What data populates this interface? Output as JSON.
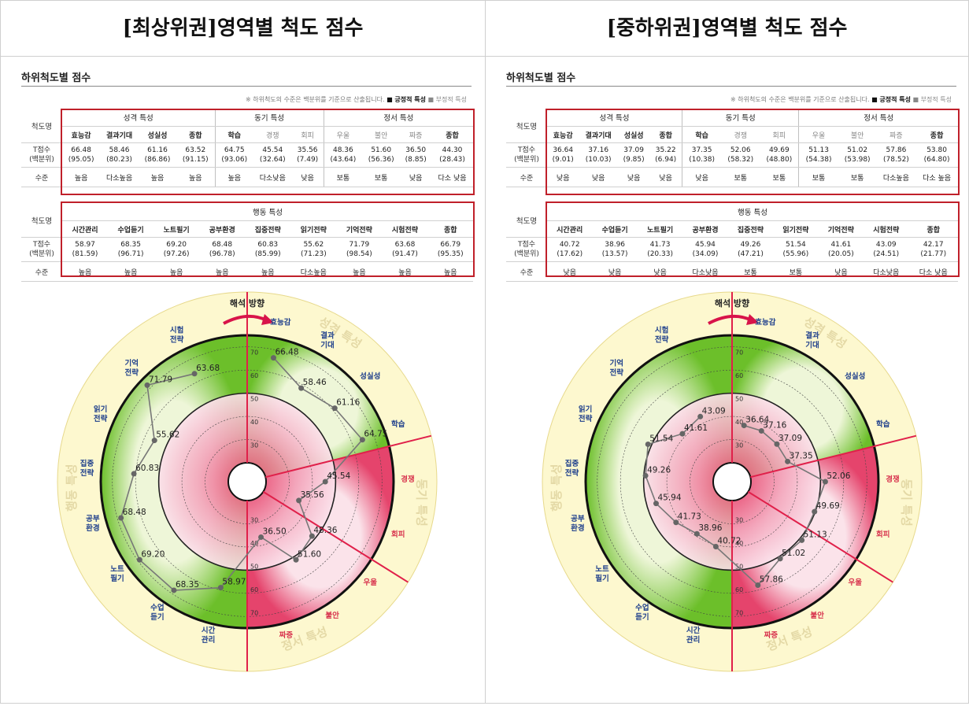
{
  "panels": [
    {
      "title": "[최상위권]영역별 척도 점수",
      "subtitle": "하위척도별 점수",
      "note_prefix": "※ 하위척도의 수준은 백분위를 기준으로 산출됩니다.",
      "note_positive": "■ 긍정적 특성",
      "note_negative": "■ 부정적 특성",
      "row_label_scale": "척도명",
      "row_label_t": "T점수",
      "row_label_pct": "(백분위)",
      "row_label_level": "수준",
      "group1": [
        {
          "name": "성격 특성",
          "cols": [
            {
              "name": "효능감",
              "t": "66.48",
              "p": "(95.05)",
              "level": "높음",
              "neg": false
            },
            {
              "name": "결과기대",
              "t": "58.46",
              "p": "(80.23)",
              "level": "다소높음",
              "neg": false
            },
            {
              "name": "성실성",
              "t": "61.16",
              "p": "(86.86)",
              "level": "높음",
              "neg": false
            },
            {
              "name": "종합",
              "t": "63.52",
              "p": "(91.15)",
              "level": "높음",
              "neg": false
            }
          ]
        },
        {
          "name": "동기 특성",
          "cols": [
            {
              "name": "학습",
              "t": "64.75",
              "p": "(93.06)",
              "level": "높음",
              "neg": false
            },
            {
              "name": "경쟁",
              "t": "45.54",
              "p": "(32.64)",
              "level": "다소낮음",
              "neg": true
            },
            {
              "name": "회피",
              "t": "35.56",
              "p": "(7.49)",
              "level": "낮음",
              "neg": true
            }
          ]
        },
        {
          "name": "정서 특성",
          "cols": [
            {
              "name": "우울",
              "t": "48.36",
              "p": "(43.64)",
              "level": "보통",
              "neg": true
            },
            {
              "name": "불안",
              "t": "51.60",
              "p": "(56.36)",
              "level": "보통",
              "neg": true
            },
            {
              "name": "짜증",
              "t": "36.50",
              "p": "(8.85)",
              "level": "낮음",
              "neg": true
            },
            {
              "name": "종합",
              "t": "44.30",
              "p": "(28.43)",
              "level": "다소 낮음",
              "neg": false
            }
          ]
        }
      ],
      "group2": {
        "name": "행동 특성",
        "cols": [
          {
            "name": "시간관리",
            "t": "58.97",
            "p": "(81.59)",
            "level": "높음"
          },
          {
            "name": "수업듣기",
            "t": "68.35",
            "p": "(96.71)",
            "level": "높음"
          },
          {
            "name": "노트필기",
            "t": "69.20",
            "p": "(97.26)",
            "level": "높음"
          },
          {
            "name": "공부환경",
            "t": "68.48",
            "p": "(96.78)",
            "level": "높음"
          },
          {
            "name": "집중전략",
            "t": "60.83",
            "p": "(85.99)",
            "level": "높음"
          },
          {
            "name": "읽기전략",
            "t": "55.62",
            "p": "(71.23)",
            "level": "다소높음"
          },
          {
            "name": "기억전략",
            "t": "71.79",
            "p": "(98.54)",
            "level": "높음"
          },
          {
            "name": "시험전략",
            "t": "63.68",
            "p": "(91.47)",
            "level": "높음"
          },
          {
            "name": "종합",
            "t": "66.79",
            "p": "(95.35)",
            "level": "높음"
          }
        ]
      },
      "chart": {
        "header": "해석 방향",
        "personality_label": "성격 특성",
        "motivation_label": "동기 특성",
        "emotion_label": "정서 특성",
        "behavior_label": "행동 특성",
        "ticks": [
          "30",
          "40",
          "50",
          "60",
          "70"
        ],
        "points": [
          {
            "label": "효능감",
            "value": 66.48
          },
          {
            "label": "결과\n기대",
            "value": 58.46
          },
          {
            "label": "성실성",
            "value": 61.16
          },
          {
            "label": "학습",
            "value": 64.75
          },
          {
            "label": "경쟁",
            "value": 45.54,
            "neg": true
          },
          {
            "label": "회피",
            "value": 35.56,
            "neg": true
          },
          {
            "label": "우울",
            "value": 48.36,
            "neg": true
          },
          {
            "label": "불안",
            "value": 51.6,
            "neg": true
          },
          {
            "label": "짜증",
            "value": 36.5,
            "neg": true
          },
          {
            "label": "시간\n관리",
            "value": 58.97
          },
          {
            "label": "수업\n듣기",
            "value": 68.35
          },
          {
            "label": "노트\n필기",
            "value": 69.2
          },
          {
            "label": "공부\n환경",
            "value": 68.48
          },
          {
            "label": "집중\n전략",
            "value": 60.83
          },
          {
            "label": "읽기\n전략",
            "value": 55.62
          },
          {
            "label": "기억\n전략",
            "value": 71.79
          },
          {
            "label": "시험\n전략",
            "value": 63.68
          }
        ]
      }
    },
    {
      "title": "[중하위권]영역별 척도 점수",
      "subtitle": "하위척도별 점수",
      "note_prefix": "※ 하위척도의 수준은 백분위를 기준으로 산출됩니다.",
      "note_positive": "■ 긍정적 특성",
      "note_negative": "■ 부정적 특성",
      "row_label_scale": "척도명",
      "row_label_t": "T점수",
      "row_label_pct": "(백분위)",
      "row_label_level": "수준",
      "group1": [
        {
          "name": "성격 특성",
          "cols": [
            {
              "name": "효능감",
              "t": "36.64",
              "p": "(9.01)",
              "level": "낮음",
              "neg": false
            },
            {
              "name": "결과기대",
              "t": "37.16",
              "p": "(10.03)",
              "level": "낮음",
              "neg": false
            },
            {
              "name": "성실성",
              "t": "37.09",
              "p": "(9.85)",
              "level": "낮음",
              "neg": false
            },
            {
              "name": "종합",
              "t": "35.22",
              "p": "(6.94)",
              "level": "낮음",
              "neg": false
            }
          ]
        },
        {
          "name": "동기 특성",
          "cols": [
            {
              "name": "학습",
              "t": "37.35",
              "p": "(10.38)",
              "level": "낮음",
              "neg": false
            },
            {
              "name": "경쟁",
              "t": "52.06",
              "p": "(58.32)",
              "level": "보통",
              "neg": true
            },
            {
              "name": "회피",
              "t": "49.69",
              "p": "(48.80)",
              "level": "보통",
              "neg": true
            }
          ]
        },
        {
          "name": "정서 특성",
          "cols": [
            {
              "name": "우울",
              "t": "51.13",
              "p": "(54.38)",
              "level": "보통",
              "neg": true
            },
            {
              "name": "불안",
              "t": "51.02",
              "p": "(53.98)",
              "level": "보통",
              "neg": true
            },
            {
              "name": "짜증",
              "t": "57.86",
              "p": "(78.52)",
              "level": "다소높음",
              "neg": true
            },
            {
              "name": "종합",
              "t": "53.80",
              "p": "(64.80)",
              "level": "다소 높음",
              "neg": false
            }
          ]
        }
      ],
      "group2": {
        "name": "행동 특성",
        "cols": [
          {
            "name": "시간관리",
            "t": "40.72",
            "p": "(17.62)",
            "level": "낮음"
          },
          {
            "name": "수업듣기",
            "t": "38.96",
            "p": "(13.57)",
            "level": "낮음"
          },
          {
            "name": "노트필기",
            "t": "41.73",
            "p": "(20.33)",
            "level": "낮음"
          },
          {
            "name": "공부환경",
            "t": "45.94",
            "p": "(34.09)",
            "level": "다소낮음"
          },
          {
            "name": "집중전략",
            "t": "49.26",
            "p": "(47.21)",
            "level": "보통"
          },
          {
            "name": "읽기전략",
            "t": "51.54",
            "p": "(55.96)",
            "level": "보통"
          },
          {
            "name": "기억전략",
            "t": "41.61",
            "p": "(20.05)",
            "level": "낮음"
          },
          {
            "name": "시험전략",
            "t": "43.09",
            "p": "(24.51)",
            "level": "다소낮음"
          },
          {
            "name": "종합",
            "t": "42.17",
            "p": "(21.77)",
            "level": "다소 낮음"
          }
        ]
      },
      "chart": {
        "header": "해석 방향",
        "personality_label": "성격 특성",
        "motivation_label": "동기 특성",
        "emotion_label": "정서 특성",
        "behavior_label": "행동 특성",
        "ticks": [
          "30",
          "40",
          "50",
          "60",
          "70"
        ],
        "points": [
          {
            "label": "효능감",
            "value": 36.64
          },
          {
            "label": "결과\n기대",
            "value": 37.16
          },
          {
            "label": "성실성",
            "value": 37.09
          },
          {
            "label": "학습",
            "value": 37.35
          },
          {
            "label": "경쟁",
            "value": 52.06,
            "neg": true
          },
          {
            "label": "회피",
            "value": 49.69,
            "neg": true
          },
          {
            "label": "우울",
            "value": 51.13,
            "neg": true
          },
          {
            "label": "불안",
            "value": 51.02,
            "neg": true
          },
          {
            "label": "짜증",
            "value": 57.86,
            "neg": true
          },
          {
            "label": "시간\n관리",
            "value": 40.72
          },
          {
            "label": "수업\n듣기",
            "value": 38.96
          },
          {
            "label": "노트\n필기",
            "value": 41.73
          },
          {
            "label": "공부\n환경",
            "value": 45.94
          },
          {
            "label": "집중\n전략",
            "value": 49.26
          },
          {
            "label": "읽기\n전략",
            "value": 51.54
          },
          {
            "label": "기억\n전략",
            "value": 41.61
          },
          {
            "label": "시험\n전략",
            "value": 43.09
          }
        ]
      }
    }
  ]
}
